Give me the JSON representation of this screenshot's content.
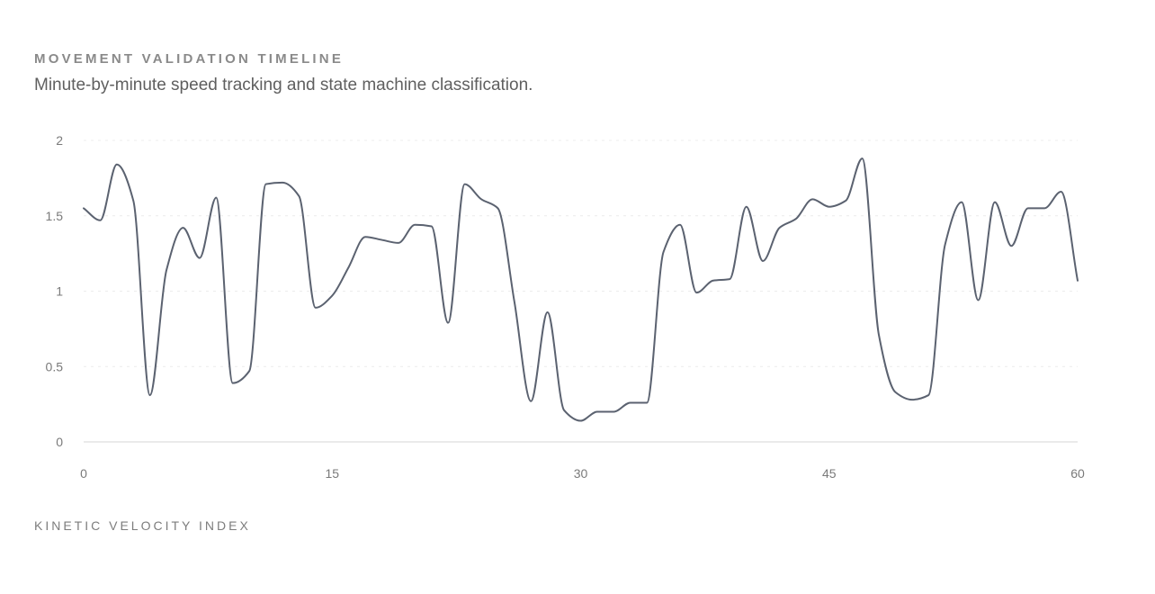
{
  "header": {
    "title": "MOVEMENT VALIDATION TIMELINE",
    "subtitle": "Minute-by-minute speed tracking and state machine classification."
  },
  "footer": {
    "label": "KINETIC VELOCITY INDEX"
  },
  "colors": {
    "line": "#5b6270",
    "grid": "#ececec",
    "axis": "#dddddd"
  },
  "chart_data": {
    "type": "line",
    "title": "MOVEMENT VALIDATION TIMELINE",
    "subtitle": "Minute-by-minute speed tracking and state machine classification.",
    "xlabel": "",
    "ylabel": "",
    "xlim": [
      0,
      60
    ],
    "ylim": [
      0,
      2
    ],
    "x_ticks": [
      0,
      15,
      30,
      45,
      60
    ],
    "y_ticks": [
      0,
      0.5,
      1,
      1.5,
      2
    ],
    "y_tick_labels": [
      "0",
      "0.5",
      "1",
      "1.5",
      "2"
    ],
    "grid": true,
    "legend": "none",
    "x": [
      0,
      1,
      2,
      3,
      4,
      5,
      6,
      7,
      8,
      9,
      10,
      11,
      12,
      13,
      14,
      15,
      16,
      17,
      18,
      19,
      20,
      21,
      22,
      23,
      24,
      25,
      26,
      27,
      28,
      29,
      30,
      31,
      32,
      33,
      34,
      35,
      36,
      37,
      38,
      39,
      40,
      41,
      42,
      43,
      44,
      45,
      46,
      47,
      48,
      49,
      50,
      51,
      52,
      53,
      54,
      55,
      56,
      57,
      58,
      59,
      60
    ],
    "series": [
      {
        "values": [
          1.55,
          1.47,
          1.84,
          1.6,
          0.31,
          1.14,
          1.42,
          1.22,
          1.62,
          0.39,
          0.47,
          1.71,
          1.72,
          1.63,
          0.89,
          0.97,
          1.16,
          1.36,
          1.34,
          1.32,
          1.44,
          1.43,
          0.79,
          1.71,
          1.61,
          1.55,
          0.93,
          0.27,
          0.86,
          0.21,
          0.14,
          0.2,
          0.2,
          0.26,
          0.26,
          1.26,
          1.44,
          0.99,
          1.07,
          1.08,
          1.56,
          1.2,
          1.42,
          1.48,
          1.61,
          1.56,
          1.6,
          1.88,
          0.71,
          0.33,
          0.28,
          0.31,
          1.31,
          1.59,
          0.94,
          1.59,
          1.3,
          1.55,
          1.55,
          1.66,
          1.07
        ]
      }
    ]
  }
}
